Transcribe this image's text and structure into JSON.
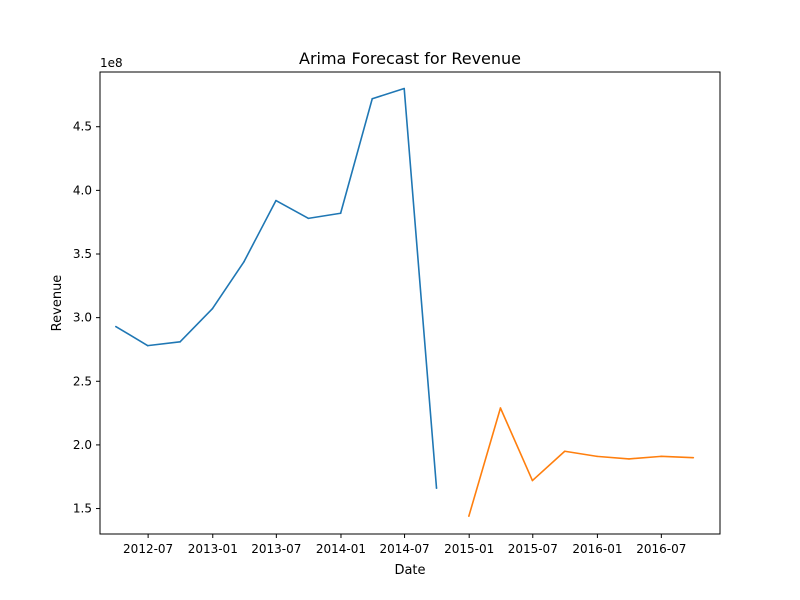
{
  "chart_data": {
    "type": "line",
    "title": "Arima Forecast for Revenue",
    "xlabel": "Date",
    "ylabel": "Revenue",
    "y_offset_label": "1e8",
    "y_multiplier": 100000000,
    "xlim": [
      "2012-02-15",
      "2016-12-15"
    ],
    "ylim": [
      1.3,
      4.93
    ],
    "grid": false,
    "x_ticks": [
      {
        "date": "2012-07-01",
        "label": "2012-07"
      },
      {
        "date": "2013-01-01",
        "label": "2013-01"
      },
      {
        "date": "2013-07-01",
        "label": "2013-07"
      },
      {
        "date": "2014-01-01",
        "label": "2014-01"
      },
      {
        "date": "2014-07-01",
        "label": "2014-07"
      },
      {
        "date": "2015-01-01",
        "label": "2015-01"
      },
      {
        "date": "2015-07-01",
        "label": "2015-07"
      },
      {
        "date": "2016-01-01",
        "label": "2016-01"
      },
      {
        "date": "2016-07-01",
        "label": "2016-07"
      }
    ],
    "y_ticks": [
      {
        "value": 1.5,
        "label": "1.5"
      },
      {
        "value": 2.0,
        "label": "2.0"
      },
      {
        "value": 2.5,
        "label": "2.5"
      },
      {
        "value": 3.0,
        "label": "3.0"
      },
      {
        "value": 3.5,
        "label": "3.5"
      },
      {
        "value": 4.0,
        "label": "4.0"
      },
      {
        "value": 4.5,
        "label": "4.5"
      }
    ],
    "series": [
      {
        "color": "#1f77b4",
        "points": [
          {
            "x": "2012-03-31",
            "y": 2.93
          },
          {
            "x": "2012-06-30",
            "y": 2.78
          },
          {
            "x": "2012-09-30",
            "y": 2.81
          },
          {
            "x": "2012-12-31",
            "y": 3.07
          },
          {
            "x": "2013-03-31",
            "y": 3.44
          },
          {
            "x": "2013-06-30",
            "y": 3.92
          },
          {
            "x": "2013-09-30",
            "y": 3.78
          },
          {
            "x": "2013-12-31",
            "y": 3.82
          },
          {
            "x": "2014-03-31",
            "y": 4.72
          },
          {
            "x": "2014-06-30",
            "y": 4.8
          },
          {
            "x": "2014-09-30",
            "y": 1.66
          }
        ]
      },
      {
        "color": "#ff7f0e",
        "points": [
          {
            "x": "2014-12-31",
            "y": 1.44
          },
          {
            "x": "2015-03-31",
            "y": 2.29
          },
          {
            "x": "2015-06-30",
            "y": 1.72
          },
          {
            "x": "2015-09-30",
            "y": 1.95
          },
          {
            "x": "2015-12-31",
            "y": 1.91
          },
          {
            "x": "2016-03-31",
            "y": 1.89
          },
          {
            "x": "2016-06-30",
            "y": 1.91
          },
          {
            "x": "2016-09-30",
            "y": 1.9
          }
        ]
      }
    ]
  }
}
